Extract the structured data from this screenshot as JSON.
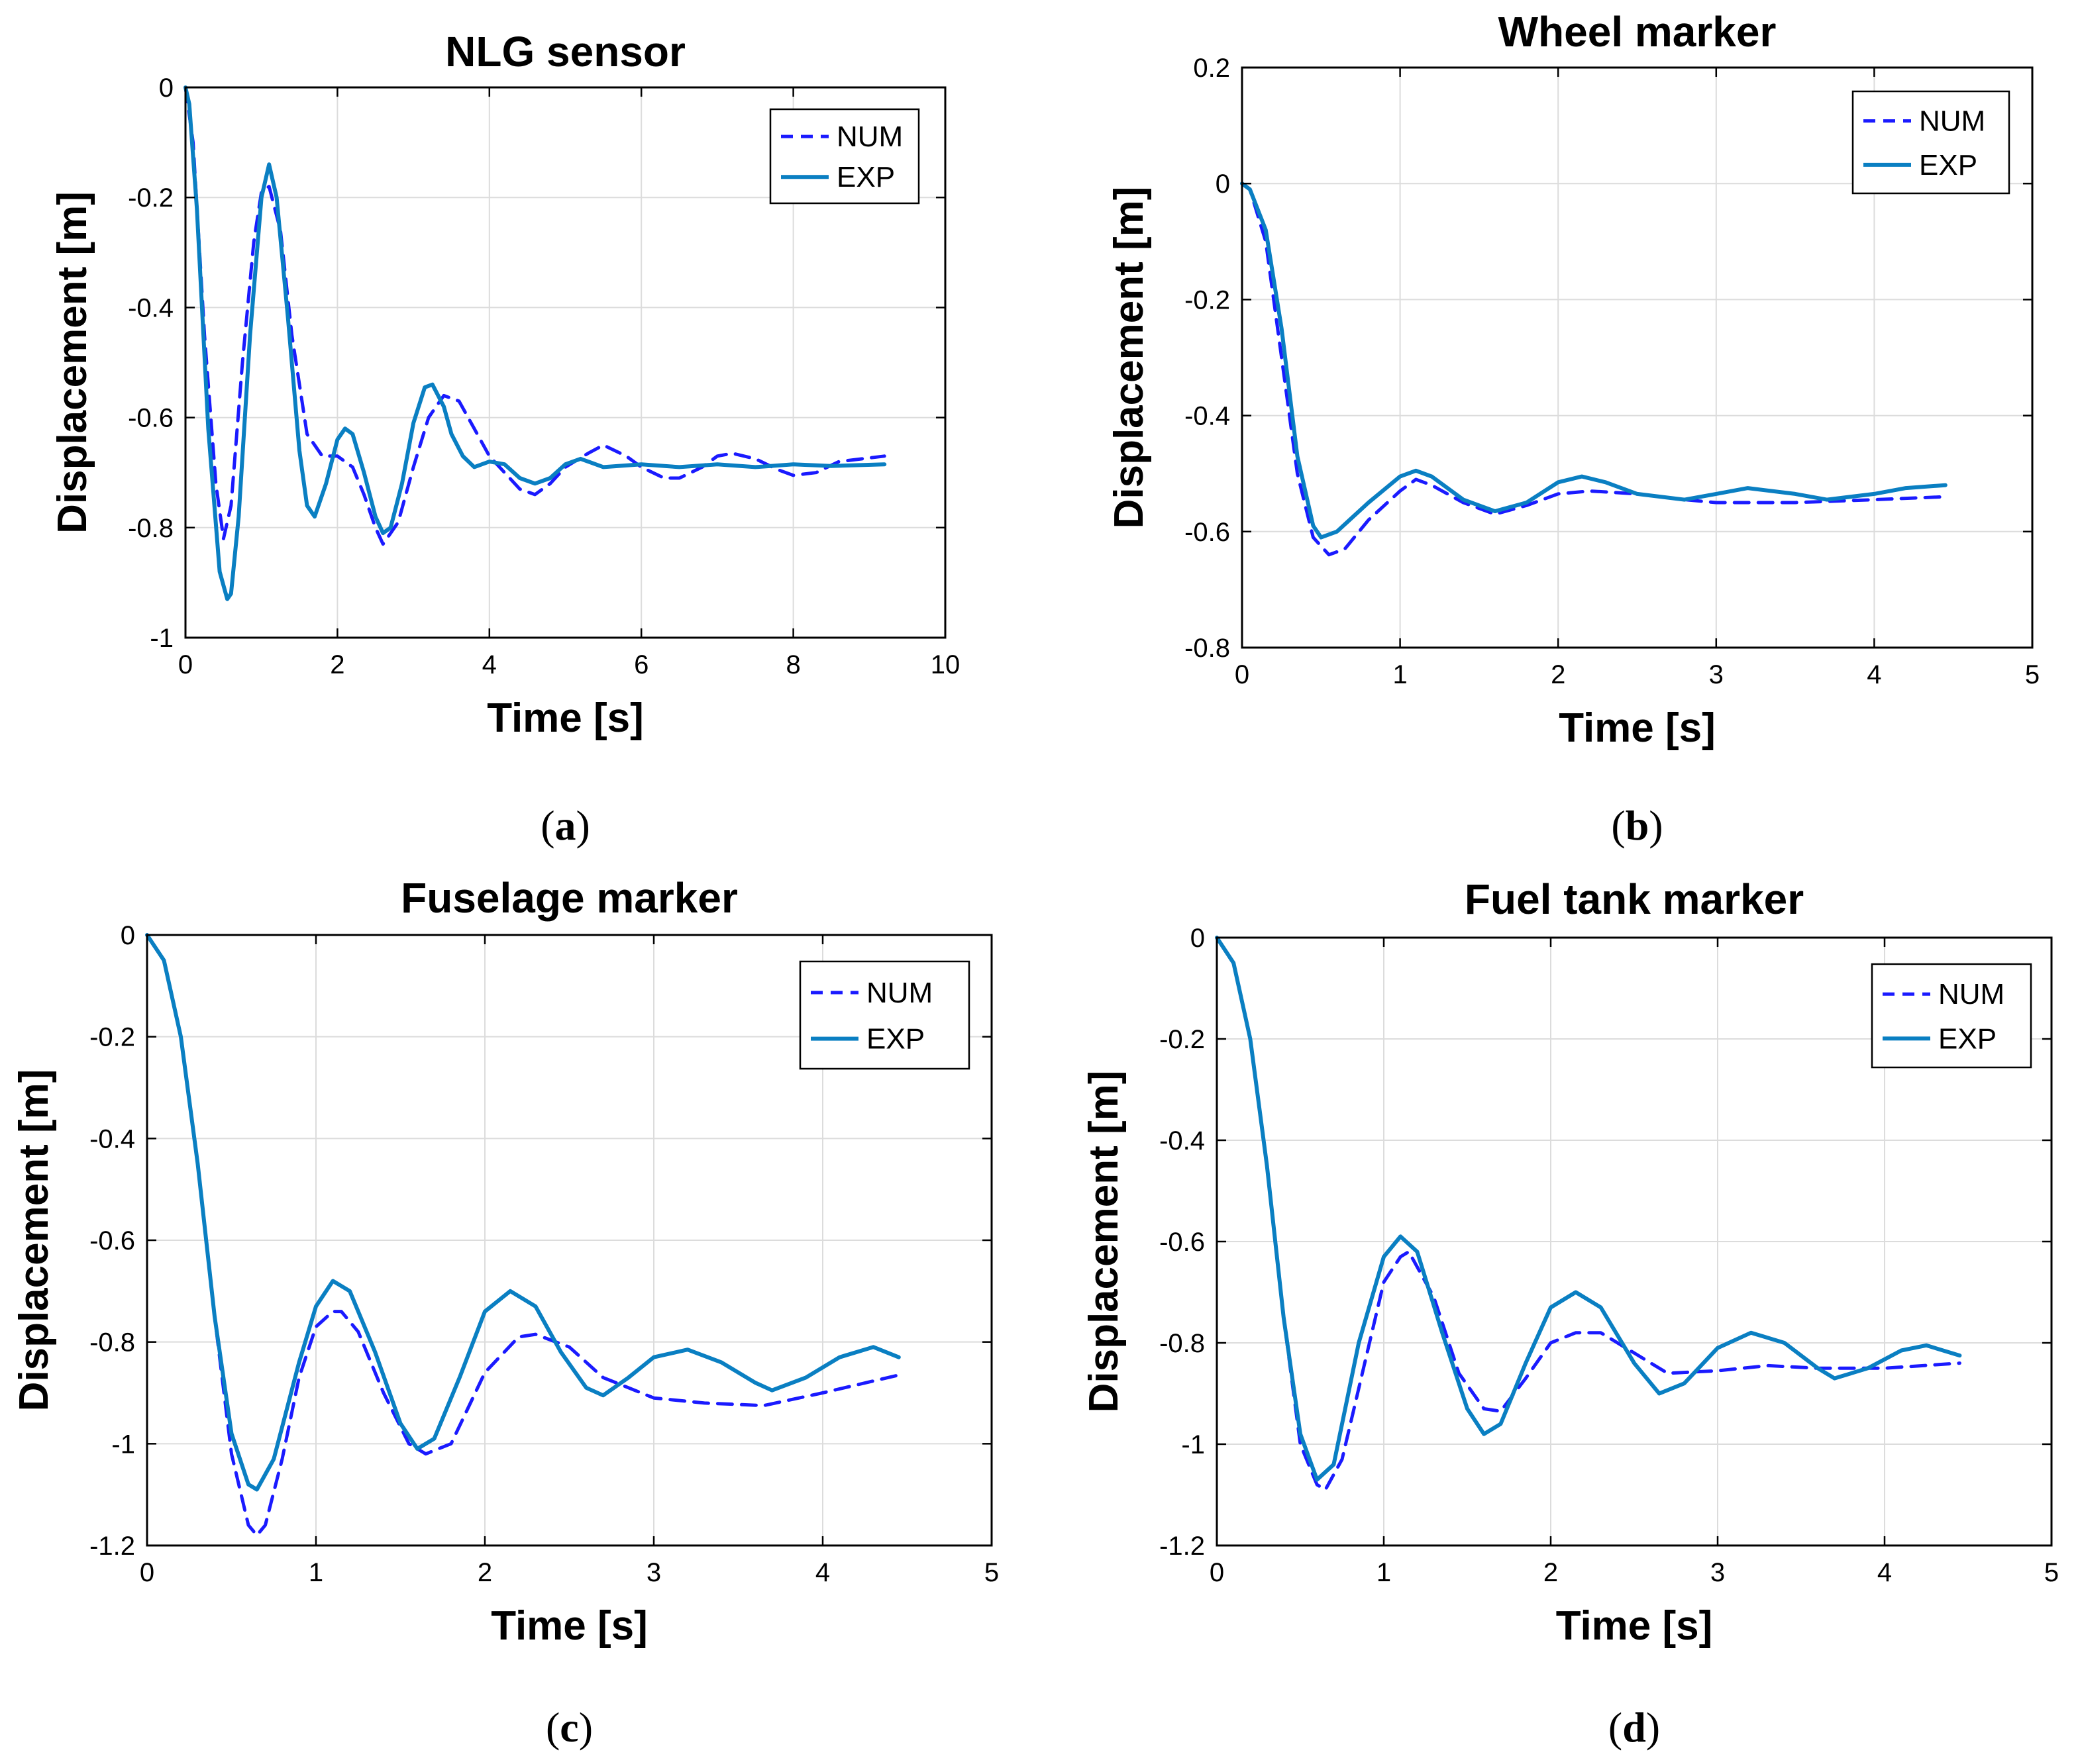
{
  "colors": {
    "num": "#1a1aff",
    "exp": "#0a7fc2",
    "grid": "#dcdcdc",
    "axis": "#000000"
  },
  "chart_data": [
    {
      "type": "line",
      "panel": "a",
      "caption_letter": "a",
      "title": "NLG sensor",
      "xlabel": "Time [s]",
      "ylabel": "Displacement [m]",
      "xlim": [
        0,
        10
      ],
      "ylim": [
        -1,
        0
      ],
      "xticks": [
        0,
        2,
        4,
        6,
        8,
        10
      ],
      "yticks": [
        0,
        -0.2,
        -0.4,
        -0.6,
        -0.8,
        -1
      ],
      "xtick_labels": [
        "0",
        "2",
        "4",
        "6",
        "8",
        "10"
      ],
      "ytick_labels": [
        "0",
        "-0.2",
        "-0.4",
        "-0.6",
        "-0.8",
        "-1"
      ],
      "grid": true,
      "legend": {
        "position": "top-right",
        "entries": [
          "NUM",
          "EXP"
        ]
      },
      "series": [
        {
          "name": "NUM",
          "style": "dashed",
          "x": [
            0,
            0.1,
            0.25,
            0.4,
            0.5,
            0.6,
            0.75,
            0.9,
            1.0,
            1.1,
            1.25,
            1.4,
            1.6,
            1.8,
            2.0,
            2.2,
            2.35,
            2.5,
            2.6,
            2.8,
            3.0,
            3.2,
            3.4,
            3.6,
            3.8,
            4.0,
            4.2,
            4.4,
            4.6,
            4.8,
            5.0,
            5.3,
            5.5,
            5.8,
            6.0,
            6.3,
            6.5,
            6.8,
            7.0,
            7.2,
            7.5,
            7.8,
            8.0,
            8.3,
            8.6,
            9.2
          ],
          "values": [
            0,
            -0.1,
            -0.45,
            -0.72,
            -0.82,
            -0.76,
            -0.5,
            -0.28,
            -0.19,
            -0.18,
            -0.26,
            -0.45,
            -0.63,
            -0.67,
            -0.67,
            -0.69,
            -0.74,
            -0.8,
            -0.83,
            -0.79,
            -0.69,
            -0.6,
            -0.56,
            -0.57,
            -0.62,
            -0.67,
            -0.7,
            -0.73,
            -0.74,
            -0.72,
            -0.69,
            -0.665,
            -0.65,
            -0.67,
            -0.69,
            -0.71,
            -0.71,
            -0.69,
            -0.67,
            -0.665,
            -0.675,
            -0.695,
            -0.705,
            -0.7,
            -0.68,
            -0.67
          ]
        },
        {
          "name": "EXP",
          "style": "solid",
          "x": [
            0,
            0.05,
            0.15,
            0.3,
            0.45,
            0.55,
            0.6,
            0.7,
            0.85,
            1.0,
            1.1,
            1.2,
            1.35,
            1.5,
            1.6,
            1.7,
            1.85,
            2.0,
            2.1,
            2.2,
            2.35,
            2.5,
            2.6,
            2.7,
            2.85,
            3.0,
            3.15,
            3.25,
            3.4,
            3.5,
            3.65,
            3.8,
            4.0,
            4.2,
            4.4,
            4.6,
            4.8,
            5.0,
            5.2,
            5.5,
            6.0,
            6.5,
            7.0,
            7.5,
            8.0,
            8.5,
            9.2
          ],
          "values": [
            0,
            -0.03,
            -0.22,
            -0.62,
            -0.88,
            -0.93,
            -0.92,
            -0.78,
            -0.45,
            -0.2,
            -0.14,
            -0.2,
            -0.42,
            -0.66,
            -0.76,
            -0.78,
            -0.72,
            -0.64,
            -0.62,
            -0.63,
            -0.7,
            -0.78,
            -0.81,
            -0.8,
            -0.72,
            -0.61,
            -0.545,
            -0.54,
            -0.58,
            -0.63,
            -0.67,
            -0.69,
            -0.68,
            -0.685,
            -0.71,
            -0.72,
            -0.71,
            -0.685,
            -0.675,
            -0.69,
            -0.685,
            -0.69,
            -0.685,
            -0.69,
            -0.685,
            -0.688,
            -0.685
          ]
        }
      ]
    },
    {
      "type": "line",
      "panel": "b",
      "caption_letter": "b",
      "title": "Wheel marker",
      "xlabel": "Time [s]",
      "ylabel": "Displacement [m]",
      "xlim": [
        0,
        5
      ],
      "ylim": [
        -0.8,
        0.2
      ],
      "xticks": [
        0,
        1,
        2,
        3,
        4,
        5
      ],
      "yticks": [
        0.2,
        0,
        -0.2,
        -0.4,
        -0.6,
        -0.8
      ],
      "xtick_labels": [
        "0",
        "1",
        "2",
        "3",
        "4",
        "5"
      ],
      "ytick_labels": [
        "0.2",
        "0",
        "-0.2",
        "-0.4",
        "-0.6",
        "-0.8"
      ],
      "grid": true,
      "legend": {
        "position": "top-right",
        "entries": [
          "NUM",
          "EXP"
        ]
      },
      "series": [
        {
          "name": "NUM",
          "style": "dashed",
          "x": [
            0,
            0.05,
            0.15,
            0.25,
            0.35,
            0.45,
            0.55,
            0.65,
            0.8,
            1.0,
            1.1,
            1.2,
            1.4,
            1.6,
            1.8,
            2.0,
            2.2,
            2.5,
            2.8,
            3.0,
            3.5,
            4.0,
            4.45
          ],
          "values": [
            0,
            -0.01,
            -0.1,
            -0.3,
            -0.5,
            -0.61,
            -0.64,
            -0.63,
            -0.58,
            -0.53,
            -0.51,
            -0.52,
            -0.55,
            -0.57,
            -0.555,
            -0.535,
            -0.53,
            -0.535,
            -0.545,
            -0.55,
            -0.55,
            -0.545,
            -0.54
          ]
        },
        {
          "name": "EXP",
          "style": "solid",
          "x": [
            0,
            0.05,
            0.15,
            0.25,
            0.35,
            0.45,
            0.5,
            0.6,
            0.8,
            1.0,
            1.1,
            1.2,
            1.4,
            1.6,
            1.8,
            2.0,
            2.15,
            2.3,
            2.5,
            2.8,
            3.0,
            3.2,
            3.5,
            3.7,
            4.0,
            4.2,
            4.45
          ],
          "values": [
            0,
            -0.01,
            -0.08,
            -0.25,
            -0.47,
            -0.59,
            -0.61,
            -0.6,
            -0.55,
            -0.505,
            -0.495,
            -0.505,
            -0.545,
            -0.565,
            -0.55,
            -0.515,
            -0.505,
            -0.515,
            -0.535,
            -0.545,
            -0.535,
            -0.525,
            -0.535,
            -0.545,
            -0.535,
            -0.525,
            -0.52
          ]
        }
      ]
    },
    {
      "type": "line",
      "panel": "c",
      "caption_letter": "c",
      "title": "Fuselage marker",
      "xlabel": "Time [s]",
      "ylabel": "Displacement [m]",
      "xlim": [
        0,
        5
      ],
      "ylim": [
        -1.2,
        0
      ],
      "xticks": [
        0,
        1,
        2,
        3,
        4,
        5
      ],
      "yticks": [
        0,
        -0.2,
        -0.4,
        -0.6,
        -0.8,
        -1,
        -1.2
      ],
      "xtick_labels": [
        "0",
        "1",
        "2",
        "3",
        "4",
        "5"
      ],
      "ytick_labels": [
        "0",
        "-0.2",
        "-0.4",
        "-0.6",
        "-0.8",
        "-1",
        "-1.2"
      ],
      "grid": true,
      "legend": {
        "position": "top-right",
        "entries": [
          "NUM",
          "EXP"
        ]
      },
      "series": [
        {
          "name": "NUM",
          "style": "dashed",
          "x": [
            0,
            0.1,
            0.2,
            0.3,
            0.4,
            0.5,
            0.6,
            0.65,
            0.7,
            0.8,
            0.9,
            1.0,
            1.1,
            1.15,
            1.25,
            1.4,
            1.55,
            1.65,
            1.8,
            2.0,
            2.2,
            2.3,
            2.5,
            2.7,
            3.0,
            3.3,
            3.65,
            4.0,
            4.45
          ],
          "values": [
            0,
            -0.05,
            -0.2,
            -0.45,
            -0.75,
            -1.02,
            -1.16,
            -1.18,
            -1.16,
            -1.03,
            -0.87,
            -0.77,
            -0.74,
            -0.74,
            -0.78,
            -0.9,
            -1.0,
            -1.02,
            -1.0,
            -0.86,
            -0.79,
            -0.785,
            -0.81,
            -0.87,
            -0.91,
            -0.92,
            -0.925,
            -0.9,
            -0.865
          ]
        },
        {
          "name": "EXP",
          "style": "solid",
          "x": [
            0,
            0.1,
            0.2,
            0.3,
            0.4,
            0.5,
            0.6,
            0.65,
            0.75,
            0.9,
            1.0,
            1.1,
            1.2,
            1.35,
            1.5,
            1.6,
            1.7,
            1.85,
            2.0,
            2.15,
            2.3,
            2.45,
            2.6,
            2.7,
            2.85,
            3.0,
            3.2,
            3.4,
            3.6,
            3.7,
            3.9,
            4.1,
            4.3,
            4.45
          ],
          "values": [
            0,
            -0.05,
            -0.2,
            -0.45,
            -0.75,
            -0.98,
            -1.08,
            -1.09,
            -1.03,
            -0.84,
            -0.73,
            -0.68,
            -0.7,
            -0.82,
            -0.96,
            -1.01,
            -0.99,
            -0.87,
            -0.74,
            -0.7,
            -0.73,
            -0.82,
            -0.89,
            -0.905,
            -0.87,
            -0.83,
            -0.815,
            -0.84,
            -0.88,
            -0.895,
            -0.87,
            -0.83,
            -0.81,
            -0.83
          ]
        }
      ]
    },
    {
      "type": "line",
      "panel": "d",
      "caption_letter": "d",
      "title": "Fuel tank marker",
      "xlabel": "Time [s]",
      "ylabel": "Displacement [m]",
      "xlim": [
        0,
        5
      ],
      "ylim": [
        -1.2,
        0
      ],
      "xticks": [
        0,
        1,
        2,
        3,
        4,
        5
      ],
      "yticks": [
        0,
        -0.2,
        -0.4,
        -0.6,
        -0.8,
        -1,
        -1.2
      ],
      "xtick_labels": [
        "0",
        "1",
        "2",
        "3",
        "4",
        "5"
      ],
      "ytick_labels": [
        "0",
        "-0.2",
        "-0.4",
        "-0.6",
        "-0.8",
        "-1",
        "-1.2"
      ],
      "grid": true,
      "legend": {
        "position": "top-right",
        "entries": [
          "NUM",
          "EXP"
        ]
      },
      "series": [
        {
          "name": "NUM",
          "style": "dashed",
          "x": [
            0,
            0.1,
            0.2,
            0.3,
            0.4,
            0.5,
            0.6,
            0.65,
            0.75,
            0.9,
            1.0,
            1.1,
            1.15,
            1.3,
            1.45,
            1.6,
            1.7,
            1.85,
            2.0,
            2.15,
            2.3,
            2.5,
            2.7,
            3.0,
            3.3,
            3.6,
            4.0,
            4.45
          ],
          "values": [
            0,
            -0.05,
            -0.2,
            -0.45,
            -0.75,
            -1.0,
            -1.08,
            -1.09,
            -1.03,
            -0.82,
            -0.68,
            -0.63,
            -0.62,
            -0.71,
            -0.86,
            -0.93,
            -0.935,
            -0.87,
            -0.8,
            -0.78,
            -0.78,
            -0.82,
            -0.86,
            -0.855,
            -0.845,
            -0.85,
            -0.85,
            -0.84
          ]
        },
        {
          "name": "EXP",
          "style": "solid",
          "x": [
            0,
            0.1,
            0.2,
            0.3,
            0.4,
            0.5,
            0.6,
            0.7,
            0.85,
            1.0,
            1.1,
            1.2,
            1.35,
            1.5,
            1.6,
            1.7,
            1.85,
            2.0,
            2.15,
            2.3,
            2.5,
            2.65,
            2.8,
            3.0,
            3.2,
            3.4,
            3.6,
            3.7,
            3.9,
            4.1,
            4.25,
            4.45
          ],
          "values": [
            0,
            -0.05,
            -0.2,
            -0.45,
            -0.75,
            -0.98,
            -1.07,
            -1.04,
            -0.8,
            -0.63,
            -0.59,
            -0.62,
            -0.78,
            -0.93,
            -0.98,
            -0.96,
            -0.84,
            -0.73,
            -0.7,
            -0.73,
            -0.84,
            -0.9,
            -0.88,
            -0.81,
            -0.78,
            -0.8,
            -0.85,
            -0.87,
            -0.85,
            -0.815,
            -0.805,
            -0.825
          ]
        }
      ]
    }
  ]
}
